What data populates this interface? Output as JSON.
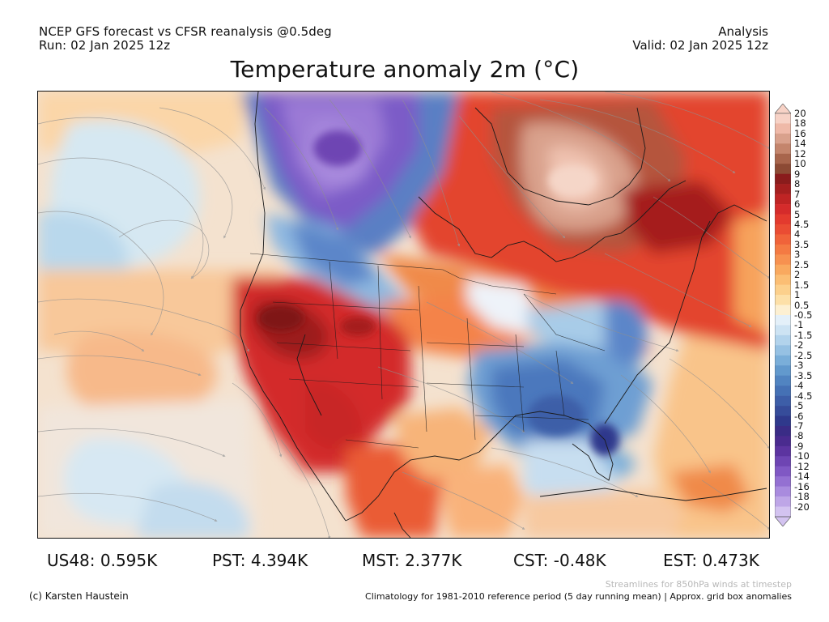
{
  "header": {
    "line1": "NCEP GFS forecast vs CFSR reanalysis @0.5deg",
    "line2": "Run: 02 Jan 2025 12z",
    "right1": "Analysis",
    "right2": "Valid: 02 Jan 2025 12z",
    "title": "Temperature anomaly 2m (°C)"
  },
  "colorbar": {
    "labels": [
      "20",
      "18",
      "16",
      "14",
      "12",
      "10",
      "9",
      "8",
      "7",
      "6",
      "5",
      "4.5",
      "4",
      "3.5",
      "3",
      "2.5",
      "2",
      "1.5",
      "1",
      "0.5",
      "-0.5",
      "-1",
      "-1.5",
      "-2",
      "-2.5",
      "-3",
      "-3.5",
      "-4",
      "-4.5",
      "-5",
      "-6",
      "-7",
      "-8",
      "-9",
      "-10",
      "-12",
      "-14",
      "-16",
      "-18",
      "-20"
    ],
    "colors": [
      "#f7d2c6",
      "#efb9a8",
      "#d9a18c",
      "#c4856c",
      "#a8654c",
      "#8c4a34",
      "#8a1c1c",
      "#a51f1f",
      "#bf2424",
      "#d52b2b",
      "#e33a2e",
      "#ea4c33",
      "#f0633a",
      "#f47a43",
      "#f79150",
      "#f9a95f",
      "#fbbe74",
      "#fcd08c",
      "#fde0a8",
      "#fdf0d2",
      "#e4f0f9",
      "#cde3f3",
      "#b2d3ec",
      "#96c1e3",
      "#7aaed9",
      "#6299cd",
      "#5184c1",
      "#4571b5",
      "#3d5ea8",
      "#364c9a",
      "#2f398c",
      "#3a2c86",
      "#4a2b8f",
      "#5c34a0",
      "#6e45b3",
      "#8058c4",
      "#9470d2",
      "#a98bde",
      "#bea6e7",
      "#d3c3f0"
    ]
  },
  "stats": [
    {
      "text": "US48: 0.595K"
    },
    {
      "text": "PST: 4.394K"
    },
    {
      "text": "MST: 2.377K"
    },
    {
      "text": "CST: -0.48K"
    },
    {
      "text": "EST: 0.473K"
    }
  ],
  "footer": {
    "streamlines_note": "Streamlines for 850hPa winds at timestep",
    "credit": "(c) Karsten Haustein",
    "climatology": "Climatology for 1981-2010 reference period (5 day running mean) | Approx. grid box anomalies"
  }
}
